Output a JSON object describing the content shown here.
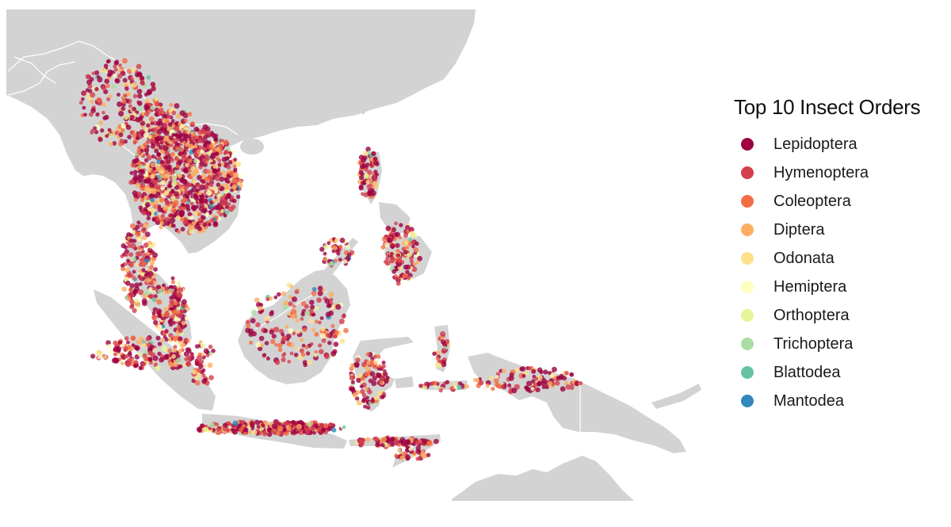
{
  "legend": {
    "title": "Top 10 Insect Orders",
    "items": [
      {
        "label": "Lepidoptera",
        "color": "#9e0142"
      },
      {
        "label": "Hymenoptera",
        "color": "#d53e4f"
      },
      {
        "label": "Coleoptera",
        "color": "#f46d43"
      },
      {
        "label": "Diptera",
        "color": "#fdae61"
      },
      {
        "label": "Odonata",
        "color": "#fee08b"
      },
      {
        "label": "Hemiptera",
        "color": "#ffffbf"
      },
      {
        "label": "Orthoptera",
        "color": "#e6f598"
      },
      {
        "label": "Trichoptera",
        "color": "#abdda4"
      },
      {
        "label": "Blattodea",
        "color": "#66c2a5"
      },
      {
        "label": "Mantodea",
        "color": "#3288bd"
      }
    ]
  },
  "colors": {
    "land": "#d3d3d3",
    "sea": "#ffffff",
    "border": "#ffffff"
  }
}
